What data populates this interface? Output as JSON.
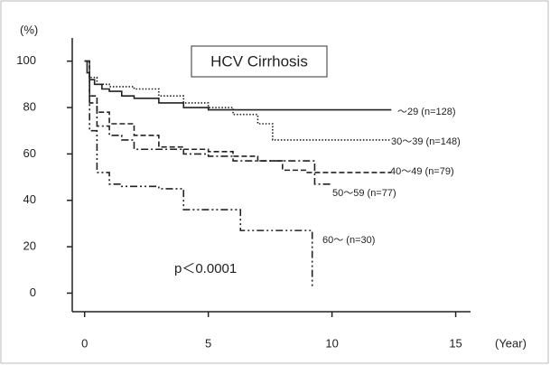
{
  "chart_data": {
    "type": "step-line",
    "title": "HCV Cirrhosis",
    "y_label": "(%)",
    "x_label": "(Year)",
    "annotation": "p＜0.0001",
    "xlim": [
      -0.5,
      15.6
    ],
    "xticks": [
      0,
      5,
      10,
      15
    ],
    "ylim": [
      -8,
      110
    ],
    "yticks": [
      0,
      20,
      40,
      60,
      80,
      100
    ],
    "grid": false,
    "series": [
      {
        "name": "〜29 (n=128)",
        "color": "#222222",
        "line_style": "solid",
        "x": [
          0,
          0.1,
          0.1,
          0.2,
          0.2,
          0.4,
          0.4,
          0.7,
          0.7,
          1,
          1,
          1.5,
          1.5,
          2,
          2,
          3,
          3,
          4,
          4,
          5,
          5,
          12.4
        ],
        "values": [
          100,
          100,
          95,
          95,
          92,
          92,
          90,
          90,
          88,
          88,
          87,
          87,
          85,
          85,
          84,
          84,
          82,
          82,
          80,
          80,
          79,
          79
        ]
      },
      {
        "name": "30〜39 (n=148)",
        "color": "#222222",
        "line_style": "dotted",
        "x": [
          0,
          0.2,
          0.2,
          0.5,
          0.5,
          1,
          1,
          2,
          2,
          3,
          3,
          4,
          4,
          5,
          5,
          6,
          6,
          7,
          7,
          7.6,
          7.6,
          12.4
        ],
        "values": [
          100,
          100,
          93,
          93,
          90,
          90,
          89,
          89,
          88,
          88,
          85,
          85,
          82,
          82,
          80,
          80,
          77,
          77,
          73,
          73,
          66,
          66
        ]
      },
      {
        "name": "40〜49 (n=79)",
        "color": "#222222",
        "line_style": "dashed",
        "x": [
          0,
          0.2,
          0.2,
          0.5,
          0.5,
          1,
          1,
          2,
          2,
          3,
          3,
          4,
          4,
          5,
          5,
          6,
          6,
          7,
          7,
          8,
          8,
          9,
          9,
          12.4
        ],
        "values": [
          100,
          100,
          85,
          85,
          78,
          78,
          73,
          73,
          68,
          68,
          63,
          63,
          62,
          62,
          61,
          61,
          59,
          59,
          57,
          57,
          53,
          53,
          52,
          52
        ]
      },
      {
        "name": "50〜59 (n=77)",
        "color": "#222222",
        "line_style": "dashdot",
        "x": [
          0,
          0.2,
          0.2,
          0.5,
          0.5,
          1,
          1,
          1.5,
          1.5,
          2,
          2,
          4,
          4,
          5,
          5,
          6,
          6,
          9.3,
          9.3,
          10
        ],
        "values": [
          100,
          100,
          82,
          82,
          72,
          72,
          68,
          68,
          66,
          66,
          62,
          62,
          60,
          60,
          59,
          59,
          57,
          57,
          47,
          47
        ]
      },
      {
        "name": "60〜 (n=30)",
        "color": "#222222",
        "line_style": "dashdotdot",
        "x": [
          0,
          0.2,
          0.2,
          0.5,
          0.5,
          1,
          1,
          1.5,
          1.5,
          3,
          3,
          4,
          4,
          6.3,
          6.3,
          9.2,
          9.2
        ],
        "values": [
          100,
          100,
          70,
          70,
          52,
          52,
          47,
          47,
          46,
          46,
          45,
          45,
          36,
          36,
          27,
          27,
          2
        ]
      }
    ]
  }
}
